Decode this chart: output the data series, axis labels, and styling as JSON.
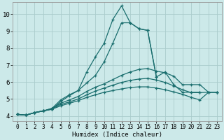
{
  "xlabel": "Humidex (Indice chaleur)",
  "bg_color": "#cce9e9",
  "grid_color": "#aacccc",
  "line_color": "#1a6e6e",
  "xlim": [
    -0.5,
    23.5
  ],
  "ylim": [
    3.7,
    10.7
  ],
  "xticks": [
    0,
    1,
    2,
    3,
    4,
    5,
    6,
    7,
    8,
    9,
    10,
    11,
    12,
    13,
    14,
    15,
    16,
    17,
    18,
    19,
    20,
    21,
    22,
    23
  ],
  "yticks": [
    4,
    5,
    6,
    7,
    8,
    9,
    10
  ],
  "series": [
    {
      "x": [
        0,
        1,
        2,
        3,
        4,
        5,
        6,
        7,
        8,
        9,
        10,
        11,
        12,
        13,
        14,
        15,
        16,
        17,
        18
      ],
      "y": [
        4.1,
        4.05,
        4.2,
        4.3,
        4.4,
        4.85,
        5.2,
        5.5,
        6.6,
        7.5,
        8.3,
        9.7,
        10.5,
        9.5,
        9.15,
        9.05,
        6.3,
        null,
        null
      ]
    },
    {
      "x": [
        0,
        1,
        2,
        3,
        4,
        5,
        6,
        7,
        8,
        9,
        10,
        11,
        12,
        13,
        14,
        15,
        16,
        17,
        18,
        19,
        20,
        21,
        22,
        23
      ],
      "y": [
        4.1,
        4.05,
        4.2,
        4.3,
        4.45,
        4.95,
        5.25,
        5.5,
        5.95,
        6.4,
        7.2,
        8.3,
        9.5,
        9.5,
        9.15,
        9.05,
        6.3,
        6.6,
        5.85,
        5.4,
        5.4,
        5.4,
        null,
        null
      ]
    },
    {
      "x": [
        0,
        1,
        2,
        3,
        4,
        5,
        6,
        7,
        8,
        9,
        10,
        11,
        12,
        13,
        14,
        15,
        16,
        17,
        18,
        19,
        20,
        21,
        22,
        23
      ],
      "y": [
        4.1,
        4.05,
        4.2,
        4.3,
        4.45,
        4.75,
        4.95,
        5.15,
        5.45,
        5.7,
        5.9,
        6.15,
        6.4,
        6.6,
        6.75,
        6.8,
        6.65,
        6.55,
        6.35,
        5.85,
        5.85,
        5.85,
        5.4,
        5.4
      ]
    },
    {
      "x": [
        0,
        1,
        2,
        3,
        4,
        5,
        6,
        7,
        8,
        9,
        10,
        11,
        12,
        13,
        14,
        15,
        16,
        17,
        18,
        19,
        20,
        21,
        22,
        23
      ],
      "y": [
        4.1,
        4.05,
        4.2,
        4.3,
        4.4,
        4.6,
        4.75,
        4.9,
        5.1,
        5.25,
        5.4,
        5.5,
        5.6,
        5.68,
        5.72,
        5.72,
        5.65,
        5.55,
        5.42,
        5.28,
        5.1,
        4.95,
        5.4,
        5.4
      ]
    },
    {
      "x": [
        0,
        1,
        2,
        3,
        4,
        5,
        6,
        7,
        8,
        9,
        10,
        11,
        12,
        13,
        14,
        15,
        16,
        17,
        18,
        19,
        20,
        21,
        22,
        23
      ],
      "y": [
        4.1,
        4.05,
        4.2,
        4.3,
        4.42,
        4.68,
        4.83,
        5.0,
        5.25,
        5.47,
        5.65,
        5.82,
        5.98,
        6.1,
        6.18,
        6.22,
        6.12,
        5.98,
        5.78,
        5.55,
        5.38,
        5.38,
        5.4,
        5.4
      ]
    }
  ]
}
